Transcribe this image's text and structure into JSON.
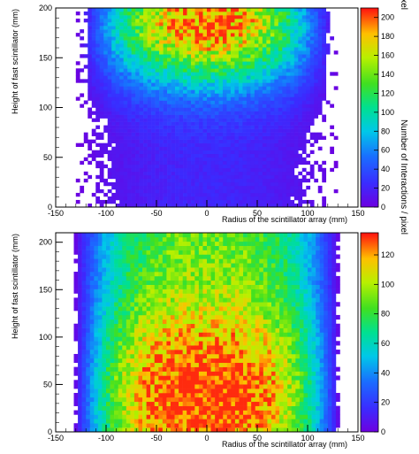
{
  "chart_data": [
    {
      "type": "heatmap",
      "title": "",
      "xlabel": "Radius of the scintillator array (mm)",
      "ylabel": "Height of fast scintillator (mm)",
      "zlabel": "Number of Interactions / pixel",
      "xlim": [
        -150,
        150
      ],
      "ylim": [
        0,
        200
      ],
      "zlim": [
        0,
        210
      ],
      "x_ticks": [
        -150,
        -100,
        -50,
        0,
        50,
        100,
        150
      ],
      "x_tick_labels": [
        "-150",
        "-100",
        "-50",
        "0",
        "50",
        "100",
        "150"
      ],
      "y_ticks": [
        0,
        50,
        100,
        150,
        200
      ],
      "y_tick_labels": [
        "0",
        "50",
        "100",
        "150",
        "200"
      ],
      "z_ticks": [
        0,
        20,
        40,
        60,
        80,
        100,
        120,
        140,
        160,
        180,
        200
      ],
      "z_tick_labels": [
        "0",
        "20",
        "40",
        "60",
        "80",
        "100",
        "120",
        "140",
        "160",
        "180",
        "200"
      ],
      "data_extent_x": [
        -130,
        130
      ],
      "grid": false,
      "colormap": "rainbow (violet-blue-cyan-green-yellow-red)",
      "distribution": "peak density (~180-200) at top center near y~180, decreasing toward bottom (~20) with sparse pixels near edges",
      "cells": [
        {
          "x": 0,
          "y": 180,
          "z": 190
        },
        {
          "x": 0,
          "y": 150,
          "z": 150
        },
        {
          "x": 0,
          "y": 120,
          "z": 90
        },
        {
          "x": 0,
          "y": 90,
          "z": 45
        },
        {
          "x": 0,
          "y": 60,
          "z": 25
        },
        {
          "x": 0,
          "y": 30,
          "z": 15
        },
        {
          "x": 0,
          "y": 5,
          "z": 8
        },
        {
          "x": 60,
          "y": 180,
          "z": 150
        },
        {
          "x": 60,
          "y": 150,
          "z": 110
        },
        {
          "x": 60,
          "y": 100,
          "z": 55
        },
        {
          "x": 60,
          "y": 50,
          "z": 20
        },
        {
          "x": 100,
          "y": 180,
          "z": 90
        },
        {
          "x": 100,
          "y": 120,
          "z": 40
        },
        {
          "x": 100,
          "y": 50,
          "z": 12
        },
        {
          "x": 120,
          "y": 150,
          "z": 20
        },
        {
          "x": 120,
          "y": 50,
          "z": 5
        }
      ]
    },
    {
      "type": "heatmap",
      "title": "",
      "xlabel": "Radius of the scintillator array (mm)",
      "ylabel": "Height of fast scintillator (mm)",
      "zlabel": "Number of Interactions / pixel",
      "xlim": [
        -150,
        150
      ],
      "ylim": [
        0,
        210
      ],
      "zlim": [
        0,
        135
      ],
      "x_ticks": [
        -150,
        -100,
        -50,
        0,
        50,
        100,
        150
      ],
      "x_tick_labels": [
        "-150",
        "-100",
        "-50",
        "0",
        "50",
        "100",
        "150"
      ],
      "y_ticks": [
        0,
        50,
        100,
        150,
        200
      ],
      "y_tick_labels": [
        "0",
        "50",
        "100",
        "150",
        "200"
      ],
      "z_ticks": [
        0,
        20,
        40,
        60,
        80,
        100,
        120
      ],
      "z_tick_labels": [
        "0",
        "20",
        "40",
        "60",
        "80",
        "100",
        "120"
      ],
      "data_extent_x": [
        -132,
        132
      ],
      "grid": false,
      "colormap": "rainbow (violet-blue-cyan-green-yellow-red)",
      "distribution": "peak density (~110-130) near center bottom around y~40, decreasing toward top (~60) and edges (~20)",
      "cells": [
        {
          "x": 0,
          "y": 40,
          "z": 115
        },
        {
          "x": 0,
          "y": 100,
          "z": 90
        },
        {
          "x": 0,
          "y": 150,
          "z": 75
        },
        {
          "x": 0,
          "y": 200,
          "z": 60
        },
        {
          "x": -50,
          "y": 40,
          "z": 100
        },
        {
          "x": 50,
          "y": 40,
          "z": 100
        },
        {
          "x": -100,
          "y": 50,
          "z": 50
        },
        {
          "x": 100,
          "y": 50,
          "z": 50
        },
        {
          "x": -100,
          "y": 180,
          "z": 35
        },
        {
          "x": 100,
          "y": 180,
          "z": 35
        },
        {
          "x": -125,
          "y": 100,
          "z": 12
        },
        {
          "x": 125,
          "y": 100,
          "z": 12
        }
      ]
    }
  ]
}
